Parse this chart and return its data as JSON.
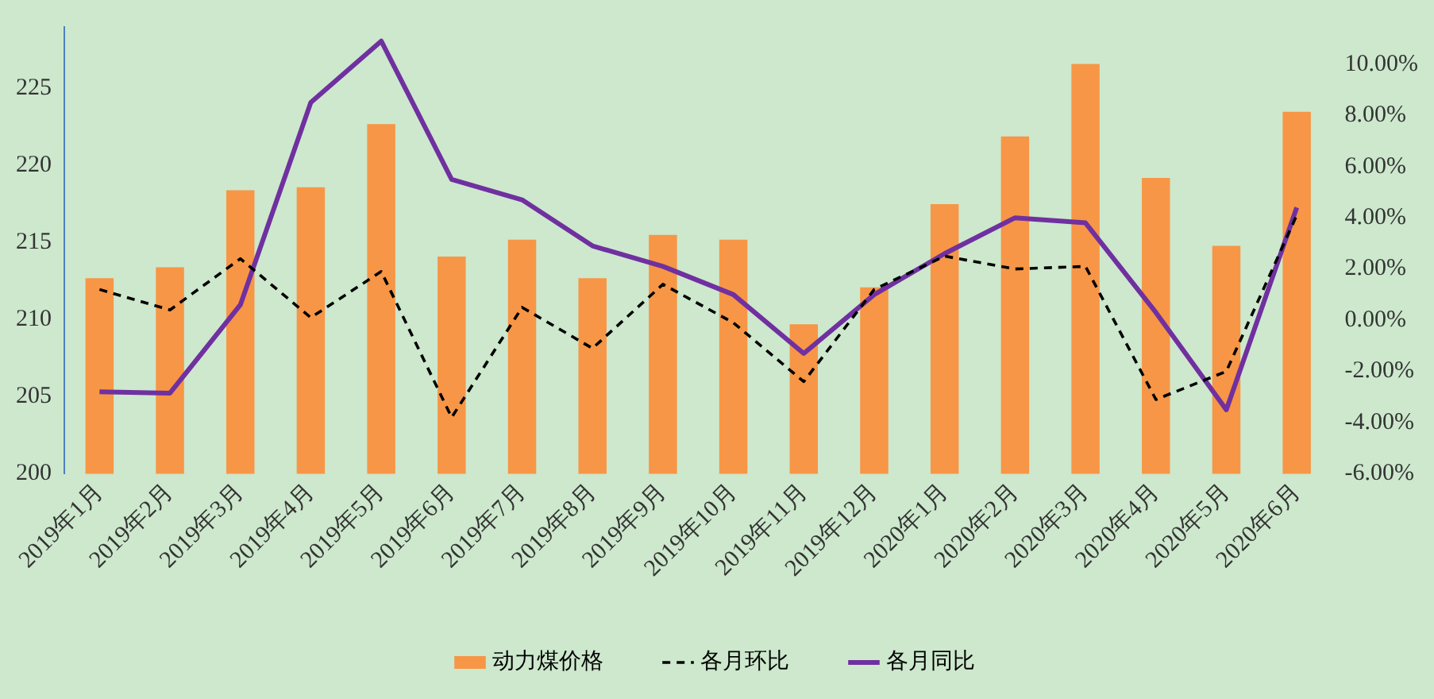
{
  "chart_data": {
    "type": "bar",
    "categories": [
      "2019年1月",
      "2019年2月",
      "2019年3月",
      "2019年4月",
      "2019年5月",
      "2019年6月",
      "2019年7月",
      "2019年8月",
      "2019年9月",
      "2019年10月",
      "2019年11月",
      "2019年12月",
      "2020年1月",
      "2020年2月",
      "2020年3月",
      "2020年4月",
      "2020年5月",
      "2020年6月"
    ],
    "series": [
      {
        "name": "动力煤价格",
        "color": "#f79646",
        "values": [
          212.7,
          213.4,
          218.4,
          218.6,
          222.7,
          214.1,
          215.2,
          212.7,
          215.5,
          215.2,
          209.7,
          212.1,
          217.5,
          221.9,
          226.6,
          219.2,
          214.8,
          223.5
        ]
      },
      {
        "name": "各月环比",
        "type": "line",
        "axis": "y2",
        "line_style": "dashed",
        "color": "#000000",
        "values": [
          1.2,
          0.4,
          2.4,
          0.1,
          1.9,
          -3.8,
          0.5,
          -1.1,
          1.4,
          -0.1,
          -2.4,
          1.2,
          2.5,
          2.0,
          2.1,
          -3.1,
          -2.0,
          4.1
        ]
      },
      {
        "name": "各月同比",
        "type": "line",
        "axis": "y2",
        "line_style": "solid",
        "color": "#7030a0",
        "values": [
          -2.8,
          -2.85,
          0.6,
          8.5,
          10.9,
          5.5,
          4.7,
          2.9,
          2.1,
          1.0,
          -1.3,
          1.0,
          2.6,
          4.0,
          3.8,
          0.3,
          -3.5,
          4.4
        ]
      }
    ],
    "ylim": [
      200,
      229
    ],
    "yticks": [
      200,
      205,
      210,
      215,
      220,
      225
    ],
    "y2lim": [
      -6,
      11.45
    ],
    "y2ticks": [
      {
        "value": -6,
        "label": "-6.00%"
      },
      {
        "value": -4,
        "label": "-4.00%"
      },
      {
        "value": -2,
        "label": "-2.00%"
      },
      {
        "value": 0,
        "label": "0.00%"
      },
      {
        "value": 2,
        "label": "2.00%"
      },
      {
        "value": 4,
        "label": "4.00%"
      },
      {
        "value": 6,
        "label": "6.00%"
      },
      {
        "value": 8,
        "label": "8.00%"
      },
      {
        "value": 10,
        "label": "10.00%"
      }
    ],
    "grid": false,
    "legend": "bottom",
    "marker": "none"
  }
}
